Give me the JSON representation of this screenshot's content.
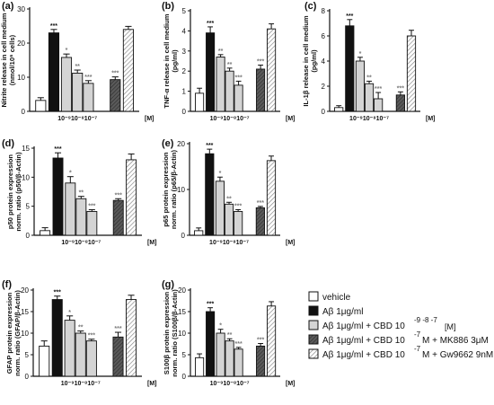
{
  "colors": {
    "vehicle": "#ffffff",
    "abeta": "#111111",
    "cbd": "#d4d4d4",
    "mk886": "#6b6b6b",
    "gw9662": "#ffffff",
    "hatch": "#9a9a9a",
    "star": "#7a7a7a"
  },
  "legend": {
    "vehicle": "vehicle",
    "abeta": "Aβ 1μg/ml",
    "cbd_prefix": "Aβ 1μg/ml + CBD 10",
    "cbd_exp": "-9 -8 -7",
    "cbd_unit": "[M]",
    "mk_prefix": "Aβ 1μg/ml + CBD 10",
    "mk_exp": "-7",
    "mk_suffix": "M + MK886  3μM",
    "gw_prefix": "Aβ 1μg/ml + CBD 10",
    "gw_exp": "-7",
    "gw_suffix": "M + Gw9662 9nM"
  },
  "chart_data": [
    {
      "panel": "(a)",
      "type": "bar",
      "ylabel": [
        "Nitrite release in cell medium",
        "(nmol/10⁶ cells)"
      ],
      "ylim": [
        0,
        30
      ],
      "yticks": [
        0,
        10,
        20,
        30
      ],
      "conc_label": "10⁻⁹10⁻⁸10⁻⁷",
      "unit_label": "[M]",
      "categories": [
        "vehicle",
        "Aβ 1μg/ml",
        "CBD 10⁻⁹",
        "CBD 10⁻⁸",
        "CBD 10⁻⁷",
        "CBD 10⁻⁷ + MK886",
        "CBD 10⁻⁷ + Gw9662"
      ],
      "values": [
        3.2,
        23,
        15.8,
        11.2,
        8.2,
        9.3,
        24
      ],
      "errors": [
        0.8,
        1.0,
        1.0,
        0.9,
        0.8,
        0.8,
        0.9
      ],
      "significance": [
        "",
        "***",
        "*",
        "**",
        "***",
        "***",
        ""
      ]
    },
    {
      "panel": "(b)",
      "type": "bar",
      "ylabel": [
        "TNF-α release in cell medium",
        "(pg/ml)"
      ],
      "ylim": [
        0,
        5
      ],
      "yticks": [
        0,
        1,
        2,
        3,
        4,
        5
      ],
      "conc_label": "10⁻⁹10⁻⁸10⁻⁷",
      "unit_label": "[M]",
      "categories": [
        "vehicle",
        "Aβ 1μg/ml",
        "CBD 10⁻⁹",
        "CBD 10⁻⁸",
        "CBD 10⁻⁷",
        "CBD 10⁻⁷ + MK886",
        "CBD 10⁻⁷ + Gw9662"
      ],
      "values": [
        0.9,
        3.9,
        2.7,
        2.0,
        1.3,
        2.1,
        4.1
      ],
      "errors": [
        0.25,
        0.3,
        0.12,
        0.15,
        0.2,
        0.2,
        0.25
      ],
      "significance": [
        "",
        "***",
        "**",
        "**",
        "***",
        "***",
        ""
      ]
    },
    {
      "panel": "(c)",
      "type": "bar",
      "ylabel": [
        "IL-1β release in cell medium",
        "(pg/ml)"
      ],
      "ylim": [
        0,
        8
      ],
      "yticks": [
        0,
        2,
        4,
        6,
        8
      ],
      "conc_label": "10⁻⁹10⁻⁸10⁻⁷",
      "unit_label": "[M]",
      "categories": [
        "vehicle",
        "Aβ 1μg/ml",
        "CBD 10⁻⁹",
        "CBD 10⁻⁸",
        "CBD 10⁻⁷",
        "CBD 10⁻⁷ + MK886",
        "CBD 10⁻⁷ + Gw9662"
      ],
      "values": [
        0.3,
        6.8,
        4.0,
        2.2,
        1.0,
        1.3,
        6.0
      ],
      "errors": [
        0.15,
        0.5,
        0.3,
        0.2,
        0.5,
        0.25,
        0.45
      ],
      "significance": [
        "",
        "***",
        "*",
        "**",
        "***",
        "***",
        ""
      ]
    },
    {
      "panel": "(d)",
      "type": "bar",
      "ylabel": [
        "p50 protein expression",
        "norm. ratio (p50/β-Actin)"
      ],
      "ylim": [
        0,
        15
      ],
      "yticks": [
        0,
        5,
        10,
        15
      ],
      "conc_label": "10⁻⁹10⁻⁸10⁻⁷",
      "unit_label": "[M]",
      "categories": [
        "vehicle",
        "Aβ 1μg/ml",
        "CBD 10⁻⁹",
        "CBD 10⁻⁸",
        "CBD 10⁻⁷",
        "CBD 10⁻⁷ + MK886",
        "CBD 10⁻⁷ + Gw9662"
      ],
      "values": [
        0.8,
        13.3,
        9.0,
        6.3,
        4.1,
        6.0,
        13.0
      ],
      "errors": [
        0.5,
        0.9,
        1.1,
        0.4,
        0.3,
        0.3,
        1.0
      ],
      "significance": [
        "",
        "***",
        "*",
        "**",
        "***",
        "***",
        ""
      ]
    },
    {
      "panel": "(e)",
      "type": "bar",
      "ylabel": [
        "p65 protein expression",
        "norm. ratio (p65/β-Actin)"
      ],
      "ylim": [
        0,
        20
      ],
      "yticks": [
        0,
        10,
        20
      ],
      "conc_label": "10⁻⁹10⁻⁸10⁻⁷",
      "unit_label": "[M]",
      "categories": [
        "vehicle",
        "Aβ 1μg/ml",
        "CBD 10⁻⁹",
        "CBD 10⁻⁸",
        "CBD 10⁻⁷",
        "CBD 10⁻⁷ + MK886",
        "CBD 10⁻⁷ + Gw9662"
      ],
      "values": [
        1.0,
        17.8,
        11.8,
        6.8,
        5.2,
        6.0,
        16.3
      ],
      "errors": [
        0.6,
        1.0,
        0.9,
        0.4,
        0.4,
        0.3,
        1.0
      ],
      "significance": [
        "",
        "***",
        "*",
        "**",
        "***",
        "***",
        ""
      ]
    },
    {
      "panel": "(f)",
      "type": "bar",
      "ylabel": [
        "GFAP protein expression",
        "norm. ratio (GFAP/β-Actin)"
      ],
      "ylim": [
        0,
        20
      ],
      "yticks": [
        0,
        5,
        10,
        15,
        20
      ],
      "conc_label": "10⁻⁹10⁻⁸10⁻⁷",
      "unit_label": "[M]",
      "categories": [
        "vehicle",
        "Aβ 1μg/ml",
        "CBD 10⁻⁹",
        "CBD 10⁻⁸",
        "CBD 10⁻⁷",
        "CBD 10⁻⁷ + MK886",
        "CBD 10⁻⁷ + Gw9662"
      ],
      "values": [
        7.0,
        17.8,
        13.0,
        10.0,
        8.2,
        9.1,
        17.8
      ],
      "errors": [
        1.2,
        0.8,
        1.0,
        0.5,
        0.4,
        1.1,
        1.0
      ],
      "significance": [
        "",
        "***",
        "*",
        "**",
        "***",
        "***",
        ""
      ]
    },
    {
      "panel": "(g)",
      "type": "bar",
      "ylabel": [
        "S100β protein expression",
        "norm. ratio (S100β/β-Actin)"
      ],
      "ylim": [
        0,
        20
      ],
      "yticks": [
        0,
        5,
        10,
        15,
        20
      ],
      "conc_label": "10⁻⁹10⁻⁸10⁻⁷",
      "unit_label": "[M]",
      "categories": [
        "vehicle",
        "Aβ 1μg/ml",
        "CBD 10⁻⁹",
        "CBD 10⁻⁸",
        "CBD 10⁻⁷",
        "CBD 10⁻⁷ + MK886",
        "CBD 10⁻⁷ + Gw9662"
      ],
      "values": [
        4.3,
        15.0,
        10.0,
        8.2,
        6.3,
        7.0,
        16.3
      ],
      "errors": [
        0.9,
        0.9,
        0.9,
        0.5,
        0.4,
        0.6,
        1.0
      ],
      "significance": [
        "",
        "***",
        "*",
        "**",
        "***",
        "***",
        ""
      ]
    }
  ]
}
